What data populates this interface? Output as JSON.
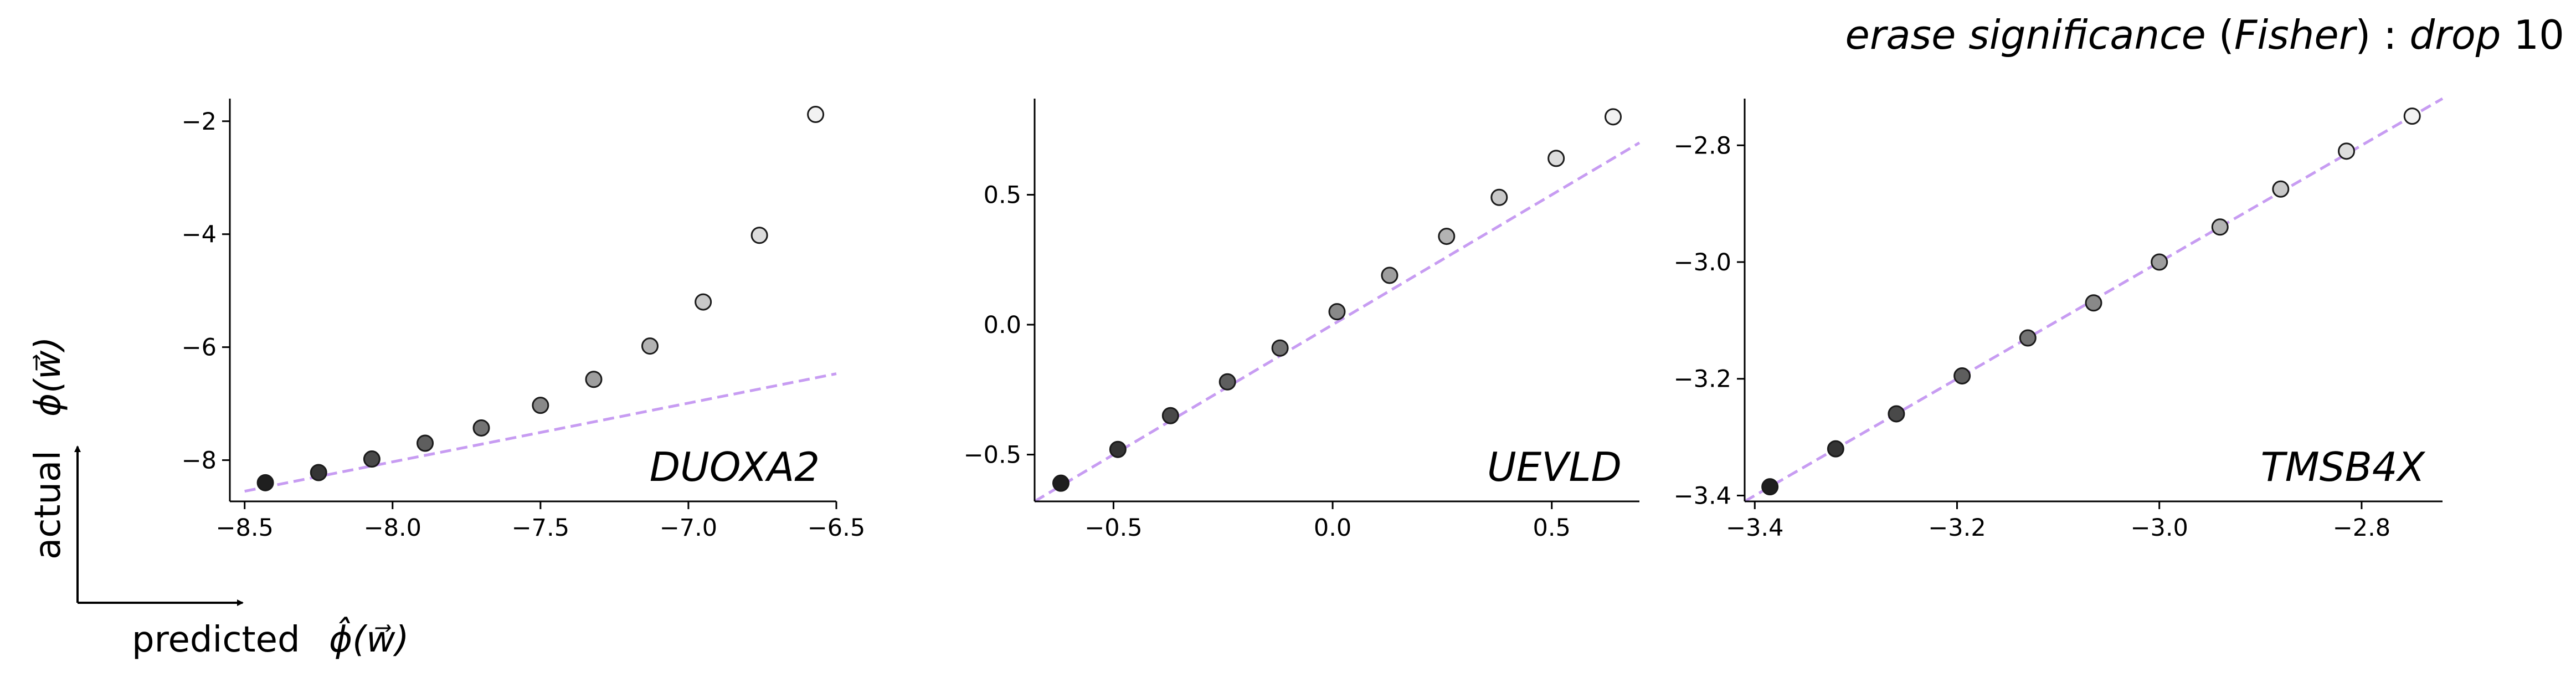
{
  "title": {
    "pre": "erase significance",
    "paren_open": " (",
    "method": "Fisher",
    "paren_close": ")  :  ",
    "drop_word": "drop",
    "drop_value": " 10"
  },
  "axes_legend": {
    "y_word": "actual",
    "y_symbol": "ϕ(w⃗)",
    "x_word": "predicted",
    "x_symbol": "ϕ̂(w⃗)"
  },
  "colors": {
    "reference_line": "#c79cf2",
    "marker_edge": "#1a1a1a",
    "marker_dark": "#1f1f1f",
    "marker_light": "#f2f2f2",
    "axis": "#000000"
  },
  "chart_data": [
    {
      "type": "scatter",
      "gene": "DUOXA2",
      "gene_num_suffix": "2",
      "x": [
        -8.43,
        -8.25,
        -8.07,
        -7.89,
        -7.7,
        -7.5,
        -7.32,
        -7.13,
        -6.95,
        -6.76,
        -6.57
      ],
      "y": [
        -8.4,
        -8.22,
        -7.98,
        -7.7,
        -7.43,
        -7.03,
        -6.57,
        -5.98,
        -5.2,
        -4.02,
        -1.88
      ],
      "reference_line": {
        "x": [
          -8.5,
          -6.5
        ],
        "y": [
          -8.55,
          -6.47
        ]
      },
      "xlim": [
        -8.55,
        -6.5
      ],
      "ylim": [
        -8.73,
        -1.6
      ],
      "xticks": [
        -8.5,
        -8.0,
        -7.5,
        -7.0,
        -6.5
      ],
      "xtick_labels": [
        "−8.5",
        "−8.0",
        "−7.5",
        "−7.0",
        "−6.5"
      ],
      "yticks": [
        -8,
        -6,
        -4,
        -2
      ],
      "ytick_labels": [
        "−8",
        "−6",
        "−4",
        "−2"
      ]
    },
    {
      "type": "scatter",
      "gene": "UEVLD",
      "gene_num_suffix": "",
      "x": [
        -0.62,
        -0.49,
        -0.37,
        -0.24,
        -0.12,
        0.01,
        0.13,
        0.26,
        0.38,
        0.51,
        0.64
      ],
      "y": [
        -0.61,
        -0.48,
        -0.35,
        -0.22,
        -0.09,
        0.05,
        0.19,
        0.34,
        0.49,
        0.64,
        0.8
      ],
      "reference_line": {
        "x": [
          -0.68,
          0.7
        ],
        "y": [
          -0.68,
          0.7
        ]
      },
      "xlim": [
        -0.68,
        0.7
      ],
      "ylim": [
        -0.68,
        0.87
      ],
      "xticks": [
        -0.5,
        0.0,
        0.5
      ],
      "xtick_labels": [
        "−0.5",
        "0.0",
        "0.5"
      ],
      "yticks": [
        -0.5,
        0.0,
        0.5
      ],
      "ytick_labels": [
        "−0.5",
        "0.0",
        "0.5"
      ]
    },
    {
      "type": "scatter",
      "gene": "TMSB4X",
      "gene_num_suffix": "",
      "x": [
        -3.385,
        -3.32,
        -3.26,
        -3.195,
        -3.13,
        -3.065,
        -3.0,
        -2.94,
        -2.88,
        -2.815,
        -2.75
      ],
      "y": [
        -3.385,
        -3.32,
        -3.26,
        -3.195,
        -3.13,
        -3.07,
        -3.0,
        -2.94,
        -2.875,
        -2.81,
        -2.75
      ],
      "reference_line": {
        "x": [
          -3.41,
          -2.72
        ],
        "y": [
          -3.41,
          -2.72
        ]
      },
      "xlim": [
        -3.41,
        -2.72
      ],
      "ylim": [
        -3.41,
        -2.72
      ],
      "xticks": [
        -3.4,
        -3.2,
        -3.0,
        -2.8
      ],
      "xtick_labels": [
        "−3.4",
        "−3.2",
        "−3.0",
        "−2.8"
      ],
      "yticks": [
        -3.4,
        -3.2,
        -3.0,
        -2.8
      ],
      "ytick_labels": [
        "−3.4",
        "−3.2",
        "−3.0",
        "−2.8"
      ]
    }
  ]
}
